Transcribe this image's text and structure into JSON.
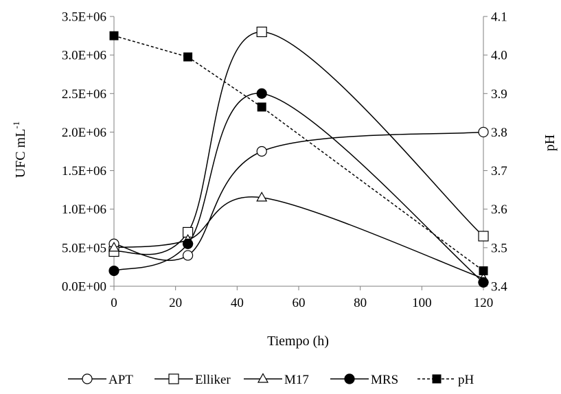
{
  "chart_data": {
    "type": "line",
    "title": "",
    "xlabel": "Tiempo (h)",
    "ylabel_left": "UFC mL",
    "ylabel_left_sup": "-1",
    "ylabel_right": "pH",
    "x_range": [
      0,
      120
    ],
    "x_ticks": [
      0,
      20,
      40,
      60,
      80,
      100,
      120
    ],
    "x_tick_labels": [
      "0",
      "20",
      "40",
      "60",
      "80",
      "100",
      "120"
    ],
    "y_left_range": [
      0,
      3500000
    ],
    "y_left_ticks": [
      0,
      500000,
      1000000,
      1500000,
      2000000,
      2500000,
      3000000,
      3500000
    ],
    "y_left_tick_labels": [
      "0.0E+00",
      "5.0E+05",
      "1.0E+06",
      "1.5E+06",
      "2.0E+06",
      "2.5E+06",
      "3.0E+06",
      "3.5E+06"
    ],
    "y_right_range": [
      3.4,
      4.1
    ],
    "y_right_ticks": [
      3.4,
      3.5,
      3.6,
      3.7,
      3.8,
      3.9,
      4.0,
      4.1
    ],
    "y_right_tick_labels": [
      "3.4",
      "3.5",
      "3.6",
      "3.7",
      "3.8",
      "3.9",
      "4.0",
      "4.1"
    ],
    "grid": false,
    "legend_position": "bottom",
    "series": [
      {
        "name": "APT",
        "axis": "left",
        "marker": "circle-open",
        "line": "solid",
        "smooth": true,
        "x": [
          0,
          24,
          48,
          120
        ],
        "values": [
          550000,
          400000,
          1750000,
          2000000
        ]
      },
      {
        "name": "Elliker",
        "axis": "left",
        "marker": "square-open",
        "line": "solid",
        "smooth": true,
        "x": [
          0,
          24,
          48,
          120
        ],
        "values": [
          450000,
          700000,
          3300000,
          650000
        ]
      },
      {
        "name": "M17",
        "axis": "left",
        "marker": "triangle-open",
        "line": "solid",
        "smooth": true,
        "x": [
          0,
          24,
          48,
          120
        ],
        "values": [
          500000,
          600000,
          1150000,
          100000
        ]
      },
      {
        "name": "MRS",
        "axis": "left",
        "marker": "circle-filled",
        "line": "solid",
        "smooth": true,
        "x": [
          0,
          24,
          48,
          120
        ],
        "values": [
          200000,
          550000,
          2500000,
          50000
        ]
      },
      {
        "name": "pH",
        "axis": "right",
        "marker": "square-filled",
        "line": "dashed",
        "smooth": false,
        "x": [
          0,
          24,
          48,
          120
        ],
        "values": [
          4.05,
          3.995,
          3.865,
          3.44
        ]
      }
    ]
  }
}
